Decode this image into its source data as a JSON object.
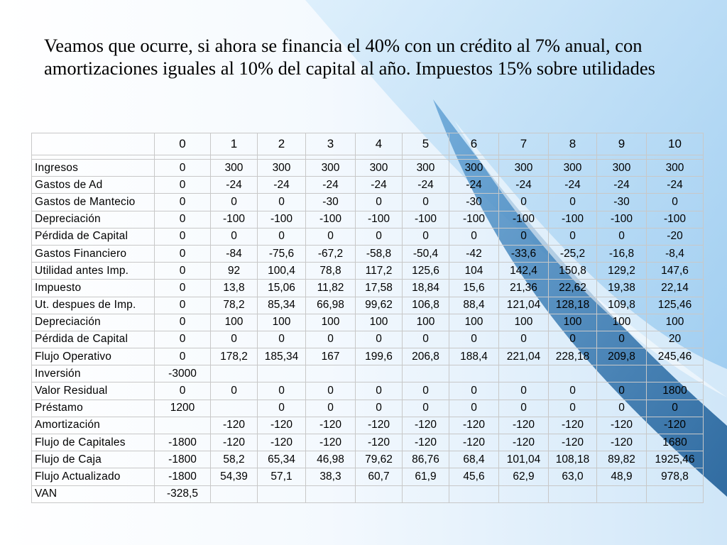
{
  "slide": {
    "title": "Veamos que ocurre, si ahora se financia el 40% con un crédito al 7% anual, con amortizaciones iguales al 10% del capital al año. Impuestos 15% sobre utilidades"
  },
  "table": {
    "columns": [
      "0",
      "1",
      "2",
      "3",
      "4",
      "5",
      "6",
      "7",
      "8",
      "9",
      "10"
    ],
    "rows": [
      {
        "label": "Ingresos",
        "values": [
          "0",
          "300",
          "300",
          "300",
          "300",
          "300",
          "300",
          "300",
          "300",
          "300",
          "300"
        ]
      },
      {
        "label": "Gastos de Ad",
        "values": [
          "0",
          "-24",
          "-24",
          "-24",
          "-24",
          "-24",
          "-24",
          "-24",
          "-24",
          "-24",
          "-24"
        ]
      },
      {
        "label": "Gastos de Mantecio",
        "values": [
          "0",
          "0",
          "0",
          "-30",
          "0",
          "0",
          "-30",
          "0",
          "0",
          "-30",
          "0"
        ]
      },
      {
        "label": "Depreciación",
        "values": [
          "0",
          "-100",
          "-100",
          "-100",
          "-100",
          "-100",
          "-100",
          "-100",
          "-100",
          "-100",
          "-100"
        ]
      },
      {
        "label": "Pérdida de Capital",
        "values": [
          "0",
          "0",
          "0",
          "0",
          "0",
          "0",
          "0",
          "0",
          "0",
          "0",
          "-20"
        ]
      },
      {
        "label": "Gastos Financiero",
        "values": [
          "0",
          "-84",
          "-75,6",
          "-67,2",
          "-58,8",
          "-50,4",
          "-42",
          "-33,6",
          "-25,2",
          "-16,8",
          "-8,4"
        ]
      },
      {
        "label": "Utilidad antes Imp.",
        "values": [
          "0",
          "92",
          "100,4",
          "78,8",
          "117,2",
          "125,6",
          "104",
          "142,4",
          "150,8",
          "129,2",
          "147,6"
        ]
      },
      {
        "label": "Impuesto",
        "values": [
          "0",
          "13,8",
          "15,06",
          "11,82",
          "17,58",
          "18,84",
          "15,6",
          "21,36",
          "22,62",
          "19,38",
          "22,14"
        ]
      },
      {
        "label": "Ut. despues de Imp.",
        "values": [
          "0",
          "78,2",
          "85,34",
          "66,98",
          "99,62",
          "106,8",
          "88,4",
          "121,04",
          "128,18",
          "109,8",
          "125,46"
        ]
      },
      {
        "label": "Depreciación",
        "values": [
          "0",
          "100",
          "100",
          "100",
          "100",
          "100",
          "100",
          "100",
          "100",
          "100",
          "100"
        ]
      },
      {
        "label": "Pérdida de Capital",
        "values": [
          "0",
          "0",
          "0",
          "0",
          "0",
          "0",
          "0",
          "0",
          "0",
          "0",
          "20"
        ]
      },
      {
        "label": "Flujo Operativo",
        "values": [
          "0",
          "178,2",
          "185,34",
          "167",
          "199,6",
          "206,8",
          "188,4",
          "221,04",
          "228,18",
          "209,8",
          "245,46"
        ]
      },
      {
        "label": "Inversión",
        "values": [
          "-3000",
          "",
          "",
          "",
          "",
          "",
          "",
          "",
          "",
          "",
          ""
        ]
      },
      {
        "label": "Valor Residual",
        "values": [
          "0",
          "0",
          "0",
          "0",
          "0",
          "0",
          "0",
          "0",
          "0",
          "0",
          "1800"
        ]
      },
      {
        "label": "Préstamo",
        "values": [
          "1200",
          "",
          "0",
          "0",
          "0",
          "0",
          "0",
          "0",
          "0",
          "0",
          "0"
        ]
      },
      {
        "label": "Amortización",
        "values": [
          "",
          "-120",
          "-120",
          "-120",
          "-120",
          "-120",
          "-120",
          "-120",
          "-120",
          "-120",
          "-120"
        ]
      },
      {
        "label": "Flujo de Capitales",
        "values": [
          "-1800",
          "-120",
          "-120",
          "-120",
          "-120",
          "-120",
          "-120",
          "-120",
          "-120",
          "-120",
          "1680"
        ]
      },
      {
        "label": "Flujo de Caja",
        "values": [
          "-1800",
          "58,2",
          "65,34",
          "46,98",
          "79,62",
          "86,76",
          "68,4",
          "101,04",
          "108,18",
          "89,82",
          "1925,46"
        ]
      },
      {
        "label": "Flujo Actualizado",
        "values": [
          "-1800",
          "54,39",
          "57,1",
          "38,3",
          "60,7",
          "61,9",
          "45,6",
          "62,9",
          "63,0",
          "48,9",
          "978,8"
        ]
      },
      {
        "label": "VAN",
        "values": [
          "-328,5",
          "",
          "",
          "",
          "",
          "",
          "",
          "",
          "",
          "",
          ""
        ]
      }
    ]
  },
  "theme": {
    "bg_light": "#e8f3fd",
    "bg_mid": "#b9dcf6",
    "swoosh_dark": "#1f5e97",
    "grid_border": "#c8c8c8"
  }
}
